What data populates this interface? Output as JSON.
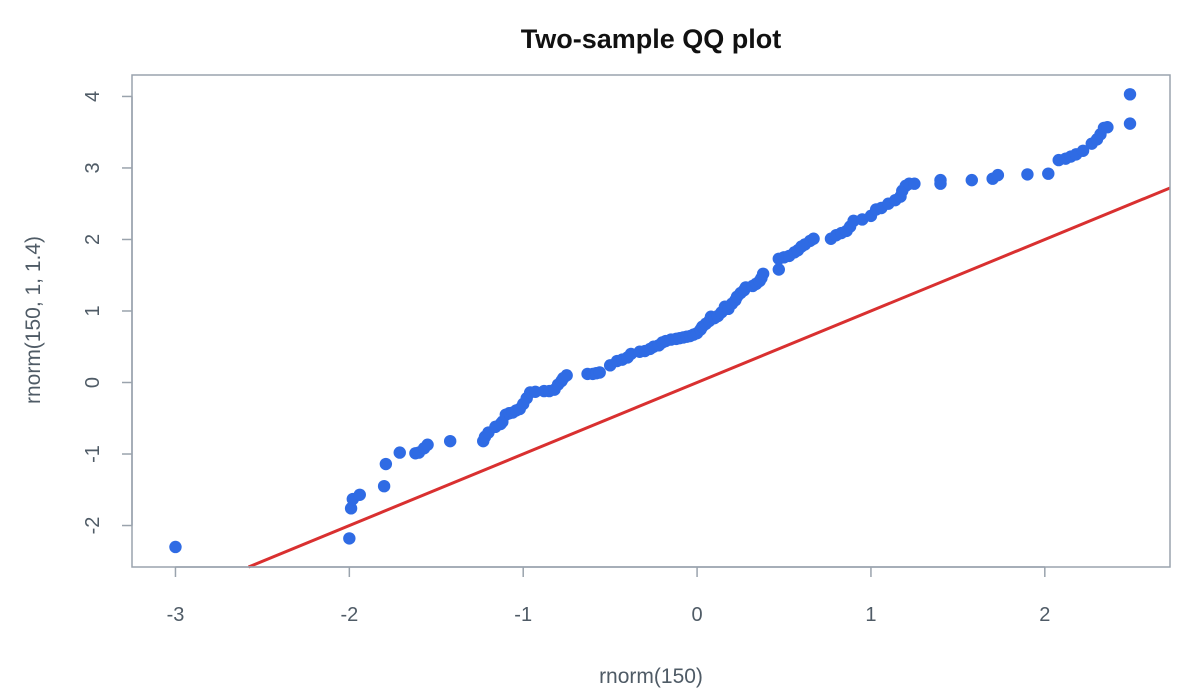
{
  "chart_data": {
    "type": "scatter",
    "title": "Two-sample QQ plot",
    "xlabel": "rnorm(150)",
    "ylabel": "rnorm(150, 1, 1.4)",
    "xlim": [
      -3.25,
      2.72
    ],
    "ylim": [
      -2.58,
      4.3
    ],
    "xticks": [
      -3,
      -2,
      -1,
      0,
      1,
      2
    ],
    "yticks": [
      -2,
      -1,
      0,
      1,
      2,
      3,
      4
    ],
    "grid": false,
    "colors": {
      "points": "#2f6be4",
      "line": "#d93030",
      "axis": "#9aa3ad",
      "text": "#4f5b66"
    },
    "reference_line": {
      "slope": 1,
      "intercept": 0
    },
    "points": [
      [
        -3.0,
        -2.3
      ],
      [
        -2.0,
        -2.18
      ],
      [
        -1.99,
        -1.76
      ],
      [
        -1.98,
        -1.63
      ],
      [
        -1.94,
        -1.57
      ],
      [
        -1.8,
        -1.45
      ],
      [
        -1.79,
        -1.14
      ],
      [
        -1.71,
        -0.98
      ],
      [
        -1.62,
        -0.99
      ],
      [
        -1.6,
        -0.98
      ],
      [
        -1.57,
        -0.92
      ],
      [
        -1.55,
        -0.87
      ],
      [
        -1.42,
        -0.82
      ],
      [
        -1.23,
        -0.82
      ],
      [
        -1.22,
        -0.76
      ],
      [
        -1.2,
        -0.7
      ],
      [
        -1.16,
        -0.62
      ],
      [
        -1.13,
        -0.58
      ],
      [
        -1.12,
        -0.55
      ],
      [
        -1.1,
        -0.45
      ],
      [
        -1.08,
        -0.43
      ],
      [
        -1.06,
        -0.42
      ],
      [
        -1.04,
        -0.39
      ],
      [
        -1.02,
        -0.37
      ],
      [
        -1.0,
        -0.3
      ],
      [
        -0.98,
        -0.22
      ],
      [
        -0.96,
        -0.14
      ],
      [
        -0.93,
        -0.13
      ],
      [
        -0.88,
        -0.12
      ],
      [
        -0.85,
        -0.12
      ],
      [
        -0.82,
        -0.1
      ],
      [
        -0.8,
        -0.03
      ],
      [
        -0.78,
        0.02
      ],
      [
        -0.77,
        0.06
      ],
      [
        -0.75,
        0.1
      ],
      [
        -0.63,
        0.12
      ],
      [
        -0.6,
        0.12
      ],
      [
        -0.58,
        0.13
      ],
      [
        -0.56,
        0.14
      ],
      [
        -0.5,
        0.24
      ],
      [
        -0.46,
        0.3
      ],
      [
        -0.43,
        0.32
      ],
      [
        -0.4,
        0.35
      ],
      [
        -0.38,
        0.4
      ],
      [
        -0.33,
        0.43
      ],
      [
        -0.3,
        0.44
      ],
      [
        -0.27,
        0.47
      ],
      [
        -0.25,
        0.5
      ],
      [
        -0.22,
        0.52
      ],
      [
        -0.2,
        0.56
      ],
      [
        -0.18,
        0.58
      ],
      [
        -0.15,
        0.6
      ],
      [
        -0.12,
        0.61
      ],
      [
        -0.1,
        0.62
      ],
      [
        -0.08,
        0.63
      ],
      [
        -0.06,
        0.64
      ],
      [
        -0.04,
        0.65
      ],
      [
        -0.02,
        0.67
      ],
      [
        0.0,
        0.69
      ],
      [
        0.02,
        0.74
      ],
      [
        0.03,
        0.78
      ],
      [
        0.05,
        0.82
      ],
      [
        0.07,
        0.86
      ],
      [
        0.08,
        0.92
      ],
      [
        0.1,
        0.9
      ],
      [
        0.12,
        0.93
      ],
      [
        0.14,
        0.98
      ],
      [
        0.16,
        1.06
      ],
      [
        0.18,
        1.03
      ],
      [
        0.2,
        1.1
      ],
      [
        0.22,
        1.15
      ],
      [
        0.23,
        1.2
      ],
      [
        0.25,
        1.25
      ],
      [
        0.27,
        1.29
      ],
      [
        0.28,
        1.33
      ],
      [
        0.32,
        1.35
      ],
      [
        0.34,
        1.38
      ],
      [
        0.36,
        1.42
      ],
      [
        0.37,
        1.46
      ],
      [
        0.38,
        1.52
      ],
      [
        0.47,
        1.58
      ],
      [
        0.47,
        1.73
      ],
      [
        0.5,
        1.75
      ],
      [
        0.53,
        1.77
      ],
      [
        0.56,
        1.82
      ],
      [
        0.58,
        1.85
      ],
      [
        0.6,
        1.9
      ],
      [
        0.62,
        1.93
      ],
      [
        0.65,
        1.98
      ],
      [
        0.67,
        2.01
      ],
      [
        0.77,
        2.01
      ],
      [
        0.8,
        2.06
      ],
      [
        0.83,
        2.09
      ],
      [
        0.86,
        2.12
      ],
      [
        0.88,
        2.18
      ],
      [
        0.9,
        2.26
      ],
      [
        0.95,
        2.28
      ],
      [
        1.0,
        2.33
      ],
      [
        1.03,
        2.42
      ],
      [
        1.06,
        2.44
      ],
      [
        1.1,
        2.5
      ],
      [
        1.14,
        2.55
      ],
      [
        1.17,
        2.6
      ],
      [
        1.18,
        2.68
      ],
      [
        1.2,
        2.75
      ],
      [
        1.22,
        2.78
      ],
      [
        1.25,
        2.78
      ],
      [
        1.4,
        2.78
      ],
      [
        1.4,
        2.83
      ],
      [
        1.58,
        2.83
      ],
      [
        1.7,
        2.85
      ],
      [
        1.73,
        2.9
      ],
      [
        1.9,
        2.91
      ],
      [
        2.02,
        2.92
      ],
      [
        2.08,
        3.11
      ],
      [
        2.12,
        3.13
      ],
      [
        2.15,
        3.16
      ],
      [
        2.18,
        3.19
      ],
      [
        2.22,
        3.24
      ],
      [
        2.27,
        3.34
      ],
      [
        2.3,
        3.4
      ],
      [
        2.32,
        3.47
      ],
      [
        2.34,
        3.56
      ],
      [
        2.36,
        3.57
      ],
      [
        2.49,
        3.62
      ],
      [
        2.49,
        4.03
      ]
    ]
  }
}
